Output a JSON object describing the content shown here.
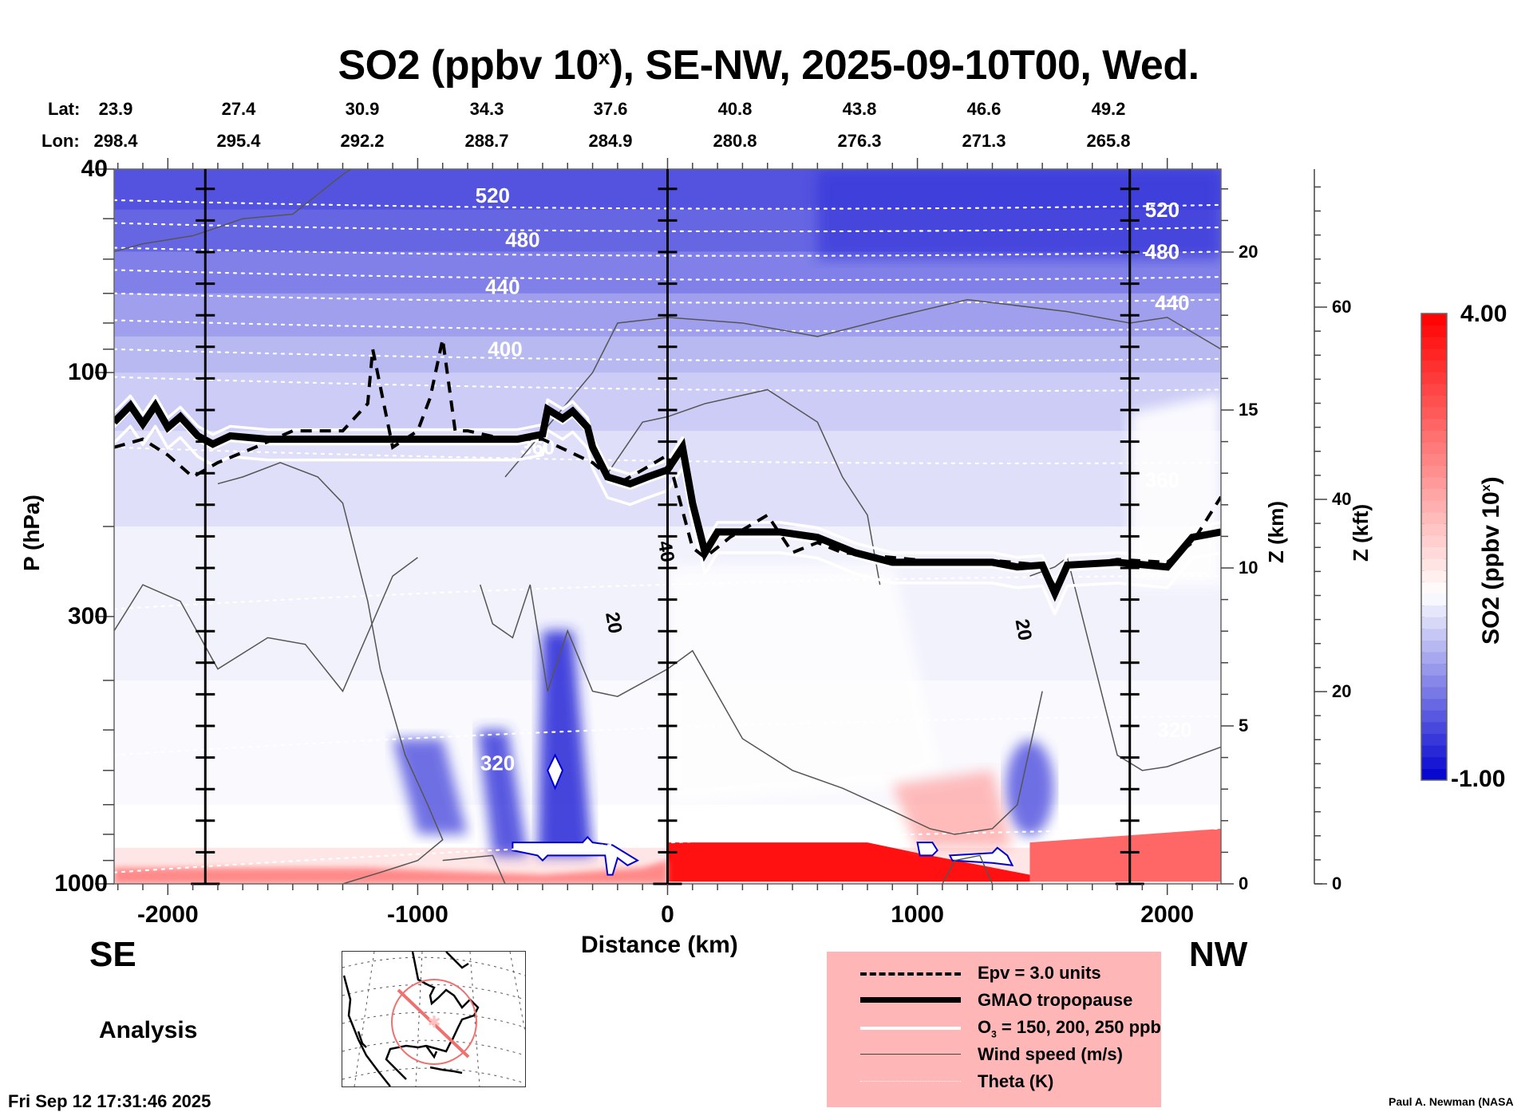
{
  "chart_data": {
    "type": "heatmap",
    "title": "SO2 (ppbv 10",
    "title_sup": "x",
    "title_rest": "), SE-NW, 2025-09-10T00, Wed.",
    "xlabel": "Distance (km)",
    "ylabel": "P (hPa)",
    "xlim": [
      -2215,
      2215
    ],
    "ylim": [
      1000,
      40
    ],
    "yscale": "log",
    "x_ticks": [
      -2000,
      -1000,
      0,
      1000,
      2000
    ],
    "x_tick_labels": [
      "-2000",
      "-1000",
      "0",
      "1000",
      "2000"
    ],
    "y_ticks": [
      40,
      100,
      300,
      1000
    ],
    "y_tick_labels": [
      "40",
      "100",
      "300",
      "1000"
    ],
    "section_markers_km": [
      -1850,
      0,
      1850
    ],
    "header": {
      "lat_label": "Lat:",
      "lon_label": "Lon:",
      "lat": [
        "23.9",
        "27.4",
        "30.9",
        "34.3",
        "37.6",
        "40.8",
        "43.8",
        "46.6",
        "49.2"
      ],
      "lon": [
        "298.4",
        "295.4",
        "292.2",
        "288.7",
        "284.9",
        "280.8",
        "276.3",
        "271.3",
        "265.8"
      ]
    },
    "z_km_axis": {
      "label": "Z (km)",
      "ticks": [
        0,
        5,
        10,
        15,
        20
      ],
      "tick_labels": [
        "0",
        "5",
        "10",
        "15",
        "20"
      ]
    },
    "z_kft_axis": {
      "label": "Z (kft)",
      "ticks": [
        0,
        20,
        40,
        60
      ],
      "tick_labels": [
        "0",
        "20",
        "40",
        "60"
      ]
    },
    "colorbar": {
      "label": "SO2 (ppbv 10",
      "label_sup": "x",
      "label_rest": ")",
      "min": -1.0,
      "max": 4.0,
      "min_label": "-1.00",
      "max_label": "4.00",
      "colors": [
        "#0000d0",
        "#ffffff",
        "#ff0000"
      ],
      "levels": 40
    },
    "theta_contours_K": [
      {
        "value": 520,
        "p_hpa_left": 46,
        "p_hpa_right": 47
      },
      {
        "value": 500,
        "p_hpa_left": 51,
        "p_hpa_right": 52
      },
      {
        "value": 480,
        "p_hpa_left": 57,
        "p_hpa_right": 58
      },
      {
        "value": 460,
        "p_hpa_left": 63,
        "p_hpa_right": 65
      },
      {
        "value": 440,
        "p_hpa_left": 70,
        "p_hpa_right": 72
      },
      {
        "value": 420,
        "p_hpa_left": 79,
        "p_hpa_right": 82
      },
      {
        "value": 400,
        "p_hpa_left": 90,
        "p_hpa_right": 94
      },
      {
        "value": 380,
        "p_hpa_left": 102,
        "p_hpa_right": 108
      },
      {
        "value": 360,
        "p_hpa_left": 140,
        "p_hpa_right": 150
      },
      {
        "value": 340,
        "p_hpa_left": 290,
        "p_hpa_right": 250
      },
      {
        "value": 320,
        "p_hpa_left": 560,
        "p_hpa_right": 470
      },
      {
        "value": 300,
        "p_hpa_left": 950,
        "p_hpa_right": 780
      }
    ],
    "theta_labels": [
      {
        "text": "520",
        "x_km": -700,
        "p": 45
      },
      {
        "text": "480",
        "x_km": -580,
        "p": 55
      },
      {
        "text": "440",
        "x_km": -660,
        "p": 68
      },
      {
        "text": "400",
        "x_km": -650,
        "p": 90
      },
      {
        "text": "360",
        "x_km": -520,
        "p": 140
      },
      {
        "text": "320",
        "x_km": -680,
        "p": 580
      },
      {
        "text": "520",
        "x_km": 1980,
        "p": 48
      },
      {
        "text": "480",
        "x_km": 1980,
        "p": 58
      },
      {
        "text": "440",
        "x_km": 2020,
        "p": 73
      },
      {
        "text": "360",
        "x_km": 1980,
        "p": 162
      },
      {
        "text": "320",
        "x_km": 2030,
        "p": 500
      }
    ],
    "tropopause_hpa": {
      "x_km": [
        -2215,
        -2150,
        -2100,
        -2050,
        -2000,
        -1950,
        -1880,
        -1820,
        -1750,
        -1600,
        -1400,
        -1200,
        -1000,
        -800,
        -600,
        -500,
        -480,
        -420,
        -380,
        -320,
        -300,
        -240,
        -150,
        -80,
        0,
        60,
        100,
        150,
        200,
        300,
        450,
        600,
        750,
        900,
        1100,
        1300,
        1400,
        1500,
        1550,
        1600,
        1800,
        2000,
        2100,
        2215
      ],
      "p_hpa": [
        125,
        116,
        126,
        116,
        128,
        122,
        133,
        138,
        133,
        135,
        135,
        135,
        135,
        135,
        135,
        132,
        118,
        123,
        119,
        128,
        140,
        160,
        165,
        160,
        155,
        140,
        180,
        225,
        205,
        205,
        205,
        210,
        225,
        235,
        235,
        235,
        240,
        238,
        270,
        238,
        235,
        240,
        210,
        205
      ]
    },
    "epv_3pvu_hpa": {
      "x_km": [
        -2215,
        -2100,
        -2000,
        -1900,
        -1800,
        -1650,
        -1500,
        -1300,
        -1200,
        -1180,
        -1100,
        -1000,
        -950,
        -900,
        -850,
        -800,
        -650,
        -500,
        -300,
        -200,
        -100,
        0,
        100,
        150,
        250,
        400,
        500,
        600,
        700,
        900,
        1100,
        1300,
        1500,
        1550,
        1600,
        1800,
        2000,
        2100,
        2215
      ],
      "p_hpa": [
        140,
        135,
        145,
        160,
        150,
        140,
        130,
        130,
        115,
        90,
        140,
        130,
        112,
        86,
        130,
        130,
        135,
        135,
        150,
        165,
        155,
        145,
        220,
        230,
        210,
        190,
        225,
        215,
        225,
        230,
        235,
        233,
        238,
        262,
        240,
        232,
        235,
        215,
        175
      ]
    },
    "o3_contours_ppb": [
      150,
      200,
      250
    ],
    "wind_speed_contours_ms": [
      20,
      40
    ],
    "wind_labels": [
      {
        "text": "40",
        "x_km": -30,
        "p": 225
      },
      {
        "text": "20",
        "x_km": -240,
        "p": 310
      },
      {
        "text": "20",
        "x_km": 1400,
        "p": 320
      }
    ]
  },
  "labels": {
    "se": "SE",
    "nw": "NW",
    "analysis": "Analysis",
    "timestamp": "Fri Sep 12 17:31:46 2025",
    "credit": "Paul A. Newman (NASA"
  },
  "legend": {
    "items": [
      {
        "label": "Epv = 3.0 units",
        "style": "dashed-black"
      },
      {
        "label": "GMAO tropopause",
        "style": "thick-black"
      },
      {
        "label": "O",
        "sub": "3",
        "rest": " = 150, 200, 250 ppb",
        "style": "white"
      },
      {
        "label": "Wind speed (m/s)",
        "style": "thin-black"
      },
      {
        "label": "Theta (K)",
        "style": "dotted-white"
      }
    ],
    "background": "#ffb6b6"
  },
  "inset_map": {
    "description": "North America locator map with SE-NW section line",
    "line_color": "#f07070"
  }
}
